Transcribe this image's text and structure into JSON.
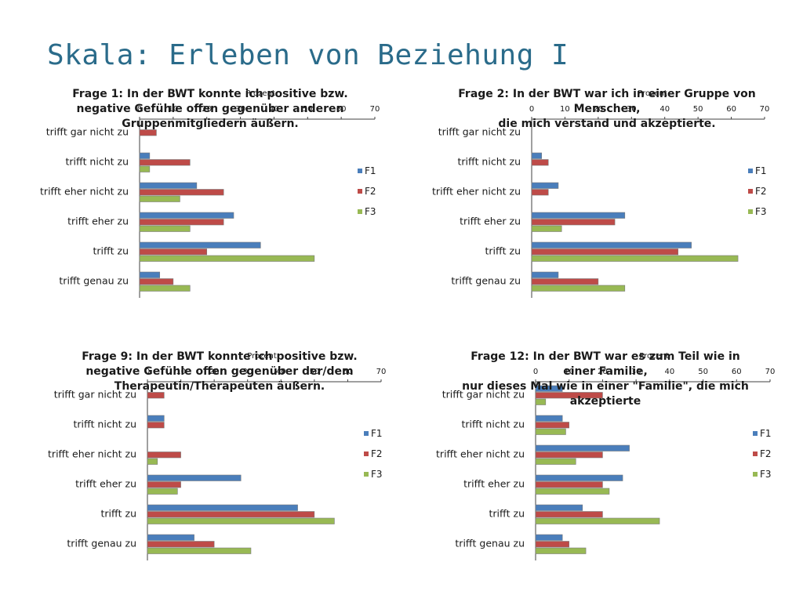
{
  "slide": {
    "title": "Skala: Erleben von Beziehung I"
  },
  "chart_data": [
    {
      "type": "bar",
      "orientation": "horizontal",
      "title_lines": [
        "Frage 1: In der BWT konnte ich positive bzw.",
        "negative Gefühle offen gegenüber anderen",
        "Gruppenmitgliedern äußern."
      ],
      "xlabel": "Prozent",
      "xlim": [
        0,
        70
      ],
      "ticks": [
        "0",
        "10",
        "20",
        "30",
        "40",
        "50",
        "60",
        "70"
      ],
      "categories": [
        "trifft gar nicht zu",
        "trifft nicht zu",
        "trifft eher nicht zu",
        "trifft eher zu",
        "trifft zu",
        "trifft genau zu"
      ],
      "series": [
        {
          "name": "F1",
          "color": "#4a7ebb",
          "values": [
            0,
            3,
            17,
            28,
            36,
            6
          ]
        },
        {
          "name": "F2",
          "color": "#be4b48",
          "values": [
            5,
            15,
            25,
            25,
            20,
            10
          ]
        },
        {
          "name": "F3",
          "color": "#98b954",
          "values": [
            0,
            3,
            12,
            15,
            52,
            15
          ]
        }
      ]
    },
    {
      "type": "bar",
      "orientation": "horizontal",
      "title_lines": [
        "Frage 2: In der BWT war ich in einer Gruppe von",
        "Menschen,",
        "die mich verstand und akzeptierte."
      ],
      "xlabel": "Prozent",
      "xlim": [
        0,
        70
      ],
      "ticks": [
        "0",
        "10",
        "20",
        "30",
        "40",
        "50",
        "60",
        "70"
      ],
      "categories": [
        "trifft gar nicht zu",
        "trifft nicht zu",
        "trifft eher nicht zu",
        "trifft eher zu",
        "trifft zu",
        "trifft genau zu"
      ],
      "series": [
        {
          "name": "F1",
          "color": "#4a7ebb",
          "values": [
            0,
            3,
            8,
            28,
            48,
            8
          ]
        },
        {
          "name": "F2",
          "color": "#be4b48",
          "values": [
            0,
            5,
            5,
            25,
            44,
            20
          ]
        },
        {
          "name": "F3",
          "color": "#98b954",
          "values": [
            0,
            0,
            0,
            9,
            62,
            28
          ]
        }
      ]
    },
    {
      "type": "bar",
      "orientation": "horizontal",
      "title_lines": [
        "Frage 9: In der BWT konnte ich positive bzw.",
        "negative Gefühle offen gegenüber der/dem",
        "Therapeutin/Therapeuten äußern."
      ],
      "xlabel": "Prozent",
      "xlim": [
        0,
        70
      ],
      "ticks": [
        "0",
        "10",
        "20",
        "30",
        "40",
        "50",
        "60",
        "70"
      ],
      "categories": [
        "trifft gar nicht zu",
        "trifft nicht zu",
        "trifft eher nicht zu",
        "trifft eher zu",
        "trifft zu",
        "trifft genau zu"
      ],
      "series": [
        {
          "name": "F1",
          "color": "#4a7ebb",
          "values": [
            0,
            5,
            0,
            28,
            45,
            14
          ]
        },
        {
          "name": "F2",
          "color": "#be4b48",
          "values": [
            5,
            5,
            10,
            10,
            50,
            20
          ]
        },
        {
          "name": "F3",
          "color": "#98b954",
          "values": [
            0,
            0,
            3,
            9,
            56,
            31
          ]
        }
      ]
    },
    {
      "type": "bar",
      "orientation": "horizontal",
      "title_lines": [
        "Frage 12: In der BWT war es zum Teil wie in",
        "einer Familie,",
        "nur dieses Mal wie in einer \"Familie\", die mich",
        "akzeptierte"
      ],
      "xlabel": "Prozent",
      "xlim": [
        0,
        70
      ],
      "ticks": [
        "0",
        "10",
        "20",
        "30",
        "40",
        "50",
        "60",
        "70"
      ],
      "categories": [
        "trifft gar nicht zu",
        "trifft nicht zu",
        "trifft eher nicht zu",
        "trifft eher zu",
        "trifft zu",
        "trifft genau zu"
      ],
      "series": [
        {
          "name": "F1",
          "color": "#4a7ebb",
          "values": [
            8,
            8,
            28,
            26,
            14,
            8
          ]
        },
        {
          "name": "F2",
          "color": "#be4b48",
          "values": [
            20,
            10,
            20,
            20,
            20,
            10
          ]
        },
        {
          "name": "F3",
          "color": "#98b954",
          "values": [
            3,
            9,
            12,
            22,
            37,
            15
          ]
        }
      ]
    }
  ]
}
